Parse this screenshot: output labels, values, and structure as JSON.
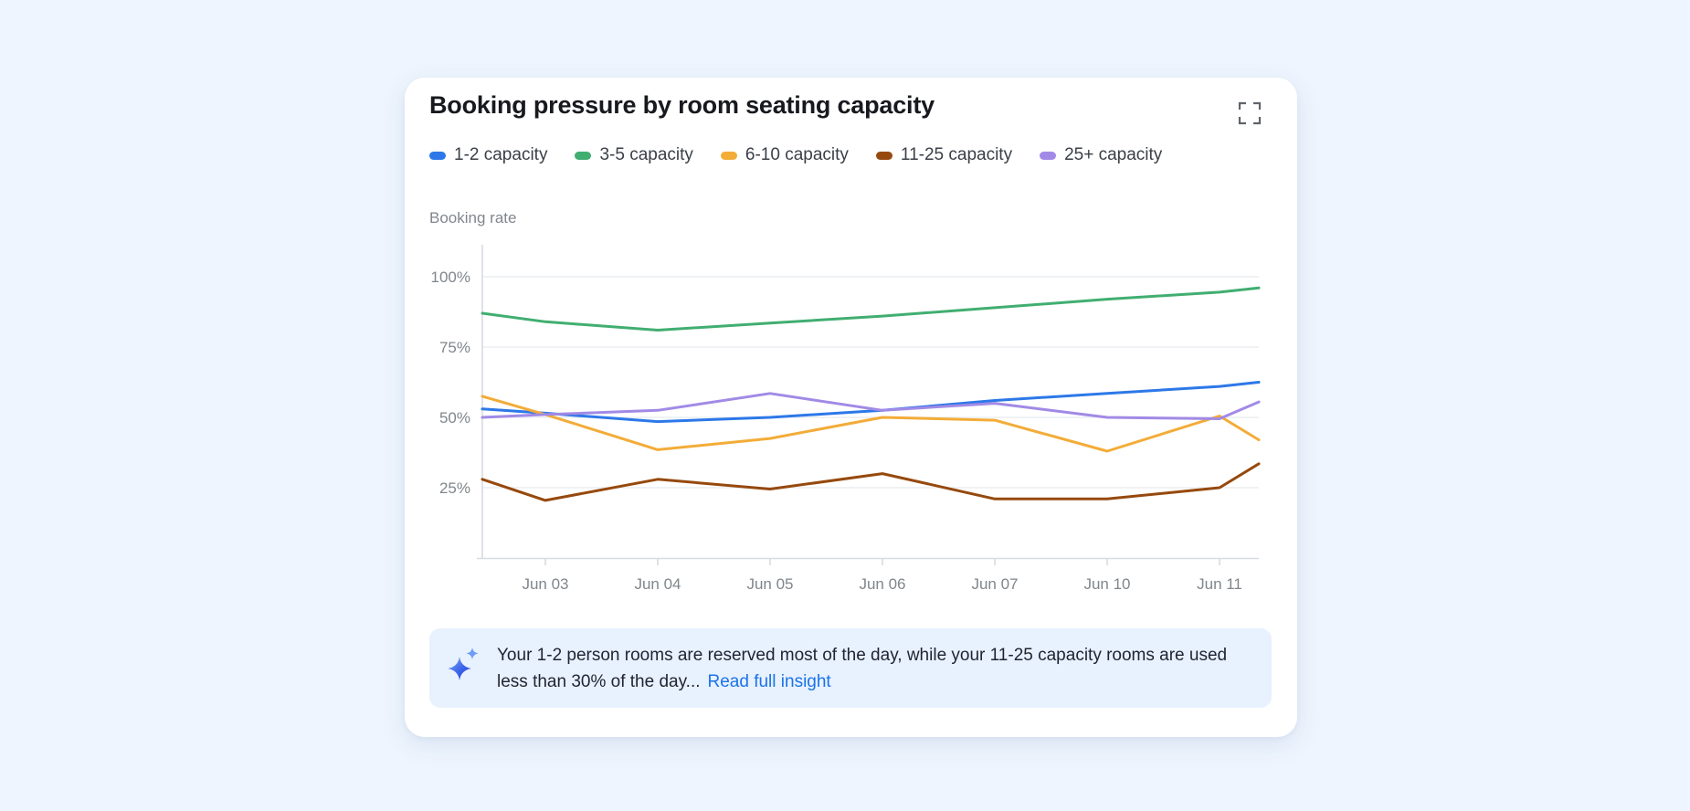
{
  "card": {
    "title": "Booking pressure by room seating capacity"
  },
  "icons": {
    "expand": "fullscreen-icon",
    "insight": "sparkle-icon"
  },
  "colors": {
    "page_background": "#eef5fe",
    "card_background": "#ffffff",
    "axis_text": "#80868b",
    "gridline": "#eceef2",
    "axis_line": "#d8dbe1",
    "insight_background": "#e8f1fe",
    "link": "#1a73e8"
  },
  "chart_data": {
    "type": "line",
    "title": "Booking pressure by room seating capacity",
    "ylabel": "Booking rate",
    "xlabel": "",
    "ylim": [
      0,
      110
    ],
    "grid": "horizontal",
    "legend_position": "top",
    "y_tick_values": [
      100,
      75,
      50,
      25
    ],
    "y_tick_labels": [
      "100%",
      "75%",
      "50%",
      "25%"
    ],
    "x_tick_labels": [
      "Jun 03",
      "Jun 04",
      "Jun 05",
      "Jun 06",
      "Jun 07",
      "Jun 10",
      "Jun 11"
    ],
    "x_points": [
      "edge-left",
      "Jun 03",
      "Jun 04",
      "Jun 05",
      "Jun 06",
      "Jun 07",
      "Jun 10",
      "Jun 11",
      "edge-right"
    ],
    "series": [
      {
        "name": "1-2 capacity",
        "color": "#2d78e8",
        "values": [
          53,
          51.5,
          48.5,
          50,
          52.5,
          56,
          58.5,
          61,
          62.5
        ]
      },
      {
        "name": "3-5 capacity",
        "color": "#41ae71",
        "values": [
          87,
          84,
          81,
          83.5,
          86,
          89,
          92,
          94.5,
          96
        ]
      },
      {
        "name": "6-10 capacity",
        "color": "#f3ac38",
        "values": [
          57.5,
          51,
          38.5,
          42.5,
          50,
          49,
          38,
          50.5,
          42
        ]
      },
      {
        "name": "11-25 capacity",
        "color": "#96490d",
        "values": [
          28,
          20.5,
          28,
          24.5,
          30,
          21,
          21,
          25,
          33.5
        ]
      },
      {
        "name": "25+ capacity",
        "color": "#a18ae6",
        "values": [
          50,
          51,
          52.5,
          58.5,
          52.5,
          55,
          50,
          49.5,
          55.5
        ]
      }
    ]
  },
  "insight": {
    "text": "Your 1-2 person rooms are reserved most of the day, while your 11-25 capacity rooms are used less than 30% of the day...",
    "link_label": "Read full insight"
  }
}
